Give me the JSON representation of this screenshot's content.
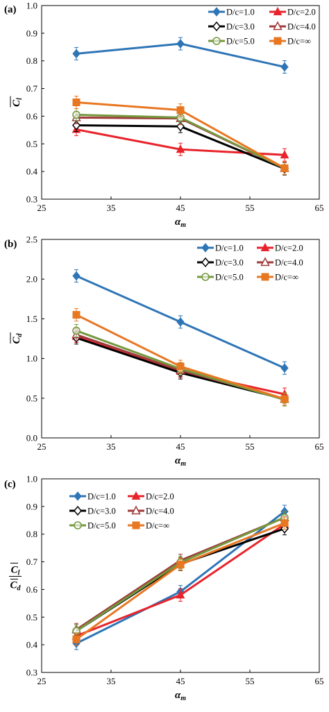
{
  "colors": {
    "D/c=1.0": "#2e75b6",
    "D/c=2.0": "#e8232b",
    "D/c=3.0": "#000000",
    "D/c=4.0": "#a03a3a",
    "D/c=5.0": "#74993e",
    "D/c=∞": "#e87722"
  },
  "markers": {
    "D/c=1.0": "diamond-filled",
    "D/c=2.0": "triangle-filled",
    "D/c=3.0": "diamond-open",
    "D/c=4.0": "triangle-open",
    "D/c=5.0": "circle-open",
    "D/c=∞": "square-filled"
  },
  "chart_data": [
    {
      "type": "line",
      "panel_label": "(a)",
      "ylabel": "C_l",
      "ylabel_base": "C",
      "ylabel_sub": "l",
      "xlabel": "α_m",
      "xlabel_base": "α",
      "xlabel_sub": "m",
      "xlim": [
        25,
        65
      ],
      "ylim": [
        0.3,
        1.0
      ],
      "xticks": [
        25,
        35,
        45,
        55,
        65
      ],
      "yticks": [
        "0.3",
        "0.4",
        "0.5",
        "0.6",
        "0.7",
        "0.8",
        "0.9",
        "1.0"
      ],
      "legend_placement": "top-right",
      "x": [
        30,
        45,
        60
      ],
      "series": [
        {
          "name": "D/c=1.0",
          "values": [
            0.826,
            0.862,
            0.778
          ]
        },
        {
          "name": "D/c=2.0",
          "values": [
            0.552,
            0.48,
            0.46
          ]
        },
        {
          "name": "D/c=3.0",
          "values": [
            0.567,
            0.563,
            0.41
          ]
        },
        {
          "name": "D/c=4.0",
          "values": [
            0.595,
            0.592,
            0.412
          ]
        },
        {
          "name": "D/c=5.0",
          "values": [
            0.605,
            0.595,
            0.412
          ]
        },
        {
          "name": "D/c=∞",
          "values": [
            0.65,
            0.622,
            0.412
          ]
        }
      ]
    },
    {
      "type": "line",
      "panel_label": "(b)",
      "ylabel": "C_d",
      "ylabel_base": "C",
      "ylabel_sub": "d",
      "xlabel": "α_m",
      "xlabel_base": "α",
      "xlabel_sub": "m",
      "xlim": [
        25,
        65
      ],
      "ylim": [
        0.0,
        2.5
      ],
      "xticks": [
        25,
        35,
        45,
        55,
        65
      ],
      "yticks": [
        "0.0",
        "0.5",
        "1.0",
        "1.5",
        "2.0",
        "2.5"
      ],
      "legend_placement": "top-right",
      "x": [
        30,
        45,
        60
      ],
      "series": [
        {
          "name": "D/c=1.0",
          "values": [
            2.04,
            1.46,
            0.88
          ]
        },
        {
          "name": "D/c=2.0",
          "values": [
            1.28,
            0.84,
            0.55
          ]
        },
        {
          "name": "D/c=3.0",
          "values": [
            1.26,
            0.82,
            0.49
          ]
        },
        {
          "name": "D/c=4.0",
          "values": [
            1.3,
            0.85,
            0.49
          ]
        },
        {
          "name": "D/c=5.0",
          "values": [
            1.35,
            0.87,
            0.48
          ]
        },
        {
          "name": "D/c=∞",
          "values": [
            1.55,
            0.9,
            0.49
          ]
        }
      ]
    },
    {
      "type": "line",
      "panel_label": "(c)",
      "ylabel": "C_l / C_d",
      "ylabel_num_base": "C",
      "ylabel_num_sub": "l",
      "ylabel_den_base": "C",
      "ylabel_den_sub": "d",
      "xlabel": "α_m",
      "xlabel_base": "α",
      "xlabel_sub": "m",
      "xlim": [
        25,
        65
      ],
      "ylim": [
        0.3,
        1.0
      ],
      "xticks": [
        25,
        35,
        45,
        55,
        65
      ],
      "yticks": [
        "0.3",
        "0.4",
        "0.5",
        "0.6",
        "0.7",
        "0.8",
        "0.9",
        "1.0"
      ],
      "legend_placement": "top-left",
      "x": [
        30,
        45,
        60
      ],
      "series": [
        {
          "name": "D/c=1.0",
          "values": [
            0.405,
            0.592,
            0.882
          ]
        },
        {
          "name": "D/c=2.0",
          "values": [
            0.432,
            0.58,
            0.836
          ]
        },
        {
          "name": "D/c=3.0",
          "values": [
            0.45,
            0.692,
            0.82
          ]
        },
        {
          "name": "D/c=4.0",
          "values": [
            0.455,
            0.705,
            0.86
          ]
        },
        {
          "name": "D/c=5.0",
          "values": [
            0.45,
            0.698,
            0.86
          ]
        },
        {
          "name": "D/c=∞",
          "values": [
            0.42,
            0.69,
            0.84
          ]
        }
      ]
    }
  ]
}
